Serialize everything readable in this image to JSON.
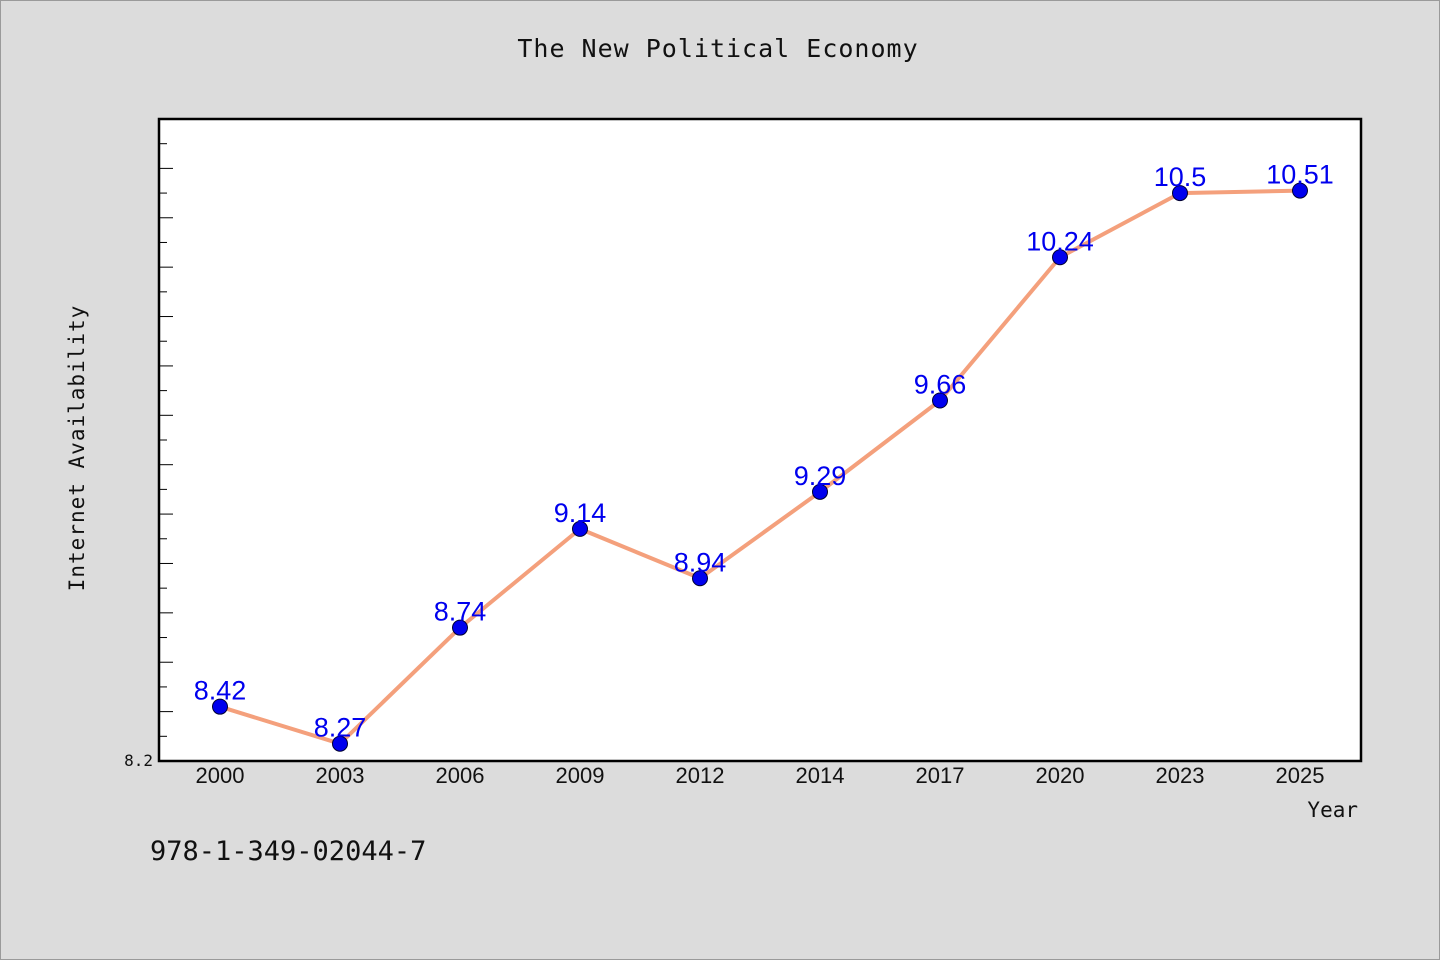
{
  "chart_data": {
    "type": "line",
    "title": "The New Political Economy",
    "xlabel": "Year",
    "ylabel": "Internet Availability",
    "categories": [
      "2000",
      "2003",
      "2006",
      "2009",
      "2012",
      "2014",
      "2017",
      "2020",
      "2023",
      "2025"
    ],
    "values": [
      8.42,
      8.27,
      8.74,
      9.14,
      8.94,
      9.29,
      9.66,
      10.24,
      10.5,
      10.51
    ],
    "data_labels": [
      "8.42",
      "8.27",
      "8.74",
      "9.14",
      "8.94",
      "9.29",
      "9.66",
      "10.24",
      "10.5",
      "10.51"
    ],
    "y_tick_labels": [
      "8.2"
    ],
    "ylim": [
      8.2,
      10.8
    ],
    "grid": false,
    "line_color": "#f4a07c",
    "marker_color": "#0000ee",
    "label_color": "#0000ee"
  },
  "footer": {
    "isbn": "978-1-349-02044-7"
  }
}
